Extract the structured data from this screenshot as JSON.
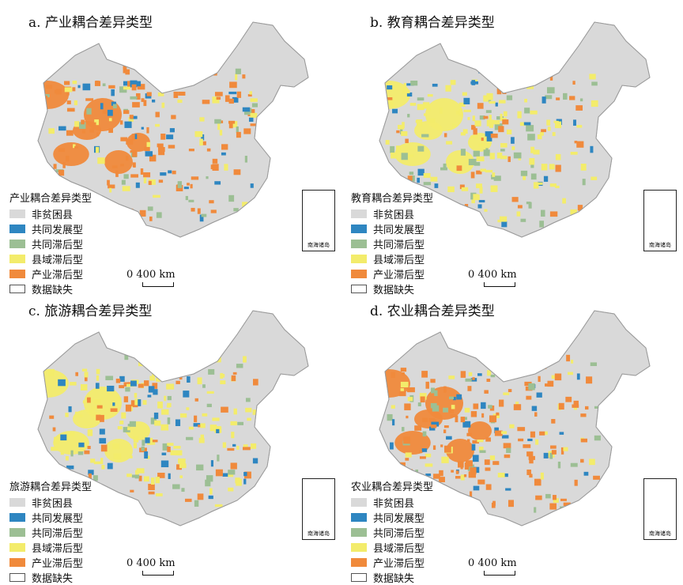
{
  "colors": {
    "non_poor": "#d9d9d9",
    "co_development": "#2e86c1",
    "co_lag": "#9cbf94",
    "county_lag": "#f3ec6b",
    "sector_lag": "#f08a3c",
    "missing": "#ffffff"
  },
  "legend_keys": [
    "non_poor",
    "co_development",
    "co_lag",
    "county_lag",
    "sector_lag",
    "missing"
  ],
  "legend_labels": [
    "非贫困县",
    "共同发展型",
    "共同滞后型",
    "县域滞后型",
    "产业滞后型",
    "数据缺失"
  ],
  "scale_label": "0    400 km",
  "inset_label": "南海诸岛",
  "panels": [
    {
      "title": "a. 产业耦合差异类型",
      "legend_title": "产业耦合差异类型",
      "dominant": "sector_lag"
    },
    {
      "title": "b. 教育耦合差异类型",
      "legend_title": "教育耦合差异类型",
      "dominant": "county_lag"
    },
    {
      "title": "c. 旅游耦合差异类型",
      "legend_title": "旅游耦合差异类型",
      "dominant": "county_lag"
    },
    {
      "title": "d. 农业耦合差异类型",
      "legend_title": "农业耦合差异类型",
      "dominant": "sector_lag"
    }
  ]
}
